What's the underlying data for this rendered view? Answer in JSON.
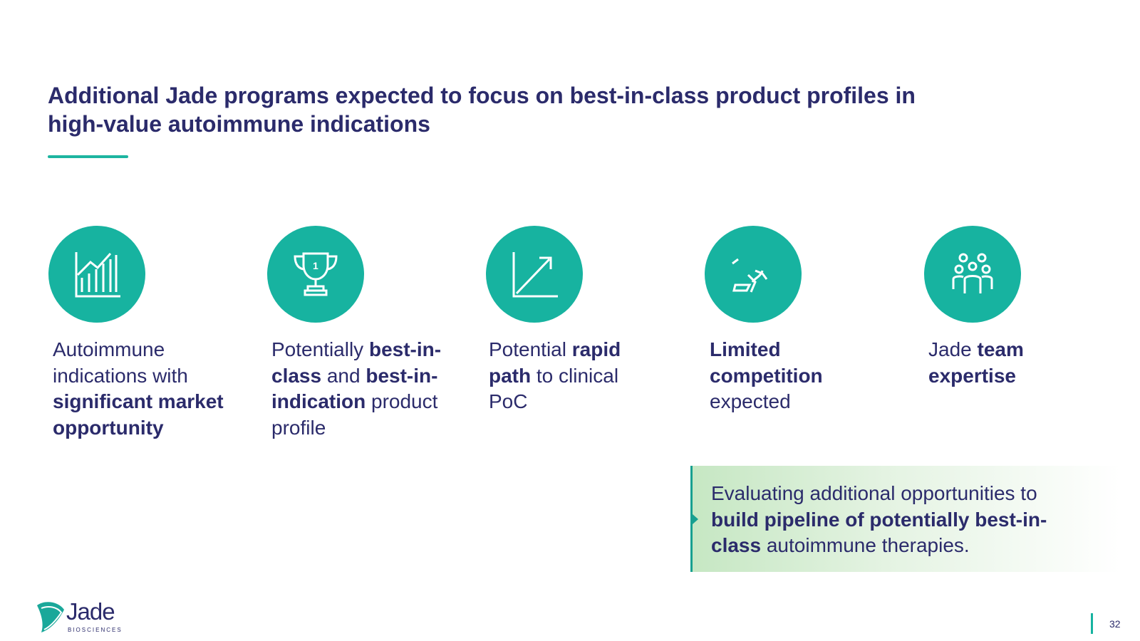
{
  "header": {
    "title": "Additional Jade programs expected to focus on best-in-class product profiles in high-value autoimmune indications"
  },
  "items": [
    {
      "runs": [
        {
          "text": "Autoimmune indications with ",
          "bold": false
        },
        {
          "text": "significant market opportunity",
          "bold": true
        }
      ]
    },
    {
      "runs": [
        {
          "text": "Potentially ",
          "bold": false
        },
        {
          "text": "best-in-class",
          "bold": true
        },
        {
          "text": " and ",
          "bold": false
        },
        {
          "text": "best-in-indication",
          "bold": true
        },
        {
          "text": " product profile",
          "bold": false
        }
      ]
    },
    {
      "runs": [
        {
          "text": "Potential ",
          "bold": false
        },
        {
          "text": "rapid path",
          "bold": true
        },
        {
          "text": " to clinical PoC",
          "bold": false
        }
      ]
    },
    {
      "runs": [
        {
          "text": "Limited competition",
          "bold": true
        },
        {
          "text": " expected",
          "bold": false
        }
      ]
    },
    {
      "runs": [
        {
          "text": "Jade ",
          "bold": false
        },
        {
          "text": "team expertise",
          "bold": true
        }
      ]
    }
  ],
  "callout": {
    "runs": [
      {
        "text": "Evaluating additional opportunities to ",
        "bold": false
      },
      {
        "text": "build pipeline of potentially best-in-class",
        "bold": true
      },
      {
        "text": " autoimmune therapies.",
        "bold": false
      }
    ]
  },
  "footer": {
    "logo_name": "Jade",
    "logo_sub": "BIOSCIENCES",
    "page_number": "32"
  }
}
